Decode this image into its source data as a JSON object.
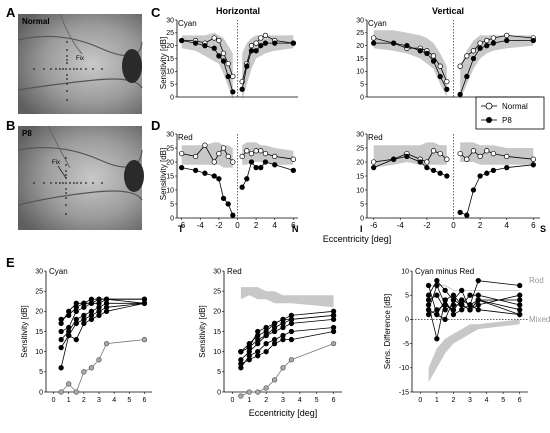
{
  "panel_letters": {
    "A": "A",
    "B": "B",
    "C": "C",
    "D": "D",
    "E": "E"
  },
  "fundus": {
    "A": {
      "title": "Normal",
      "fix_label": "Fix"
    },
    "B": {
      "title": "P8",
      "fix_label": "Fix"
    }
  },
  "column_titles": {
    "horizontal": "Horizontal",
    "vertical": "Vertical"
  },
  "legend": {
    "normal": "Normal",
    "p8": "P8"
  },
  "ylabel_cd": "Sensitivity [dB]",
  "xlabel_cd": "Eccentricity [deg]",
  "axis_end_labels": {
    "T": "T",
    "N": "N",
    "I": "I",
    "S": "S"
  },
  "xlabel_e": "Eccentricity [deg]",
  "curve_labels": {
    "rod": "Rod",
    "mixed": "Mixed"
  },
  "chart_data": [
    {
      "id": "C-horizontal",
      "type": "line",
      "title": "Cyan",
      "ylabel": "Sensitivity [dB]",
      "xlim": [
        -6.5,
        6.5
      ],
      "ylim": [
        0,
        30
      ],
      "x_neg": [
        -6,
        -4.5,
        -3.5,
        -2.5,
        -2,
        -1.5,
        -1,
        -0.5
      ],
      "x_pos": [
        0.5,
        1,
        1.5,
        2,
        2.5,
        3,
        4,
        6
      ],
      "normal_band": {
        "lo_neg": [
          19,
          18,
          16,
          14,
          13,
          9,
          4,
          -1
        ],
        "hi_neg": [
          24,
          24,
          24,
          25,
          24,
          23,
          20,
          17
        ],
        "lo_pos": [
          -1,
          5,
          11,
          15,
          16,
          17,
          18,
          19
        ],
        "hi_pos": [
          17,
          21,
          23,
          24,
          24,
          24,
          24,
          24
        ]
      },
      "series": [
        {
          "name": "Normal",
          "y_neg": [
            22,
            22,
            21,
            23,
            22,
            17,
            13,
            8
          ],
          "y_pos": [
            6,
            13,
            20,
            21,
            23,
            24,
            22,
            21
          ]
        },
        {
          "name": "P8",
          "y_neg": [
            22,
            21,
            20,
            19,
            16,
            14,
            8,
            2
          ],
          "y_pos": [
            3,
            12,
            18,
            18,
            20,
            21,
            21,
            21
          ]
        }
      ]
    },
    {
      "id": "C-vertical",
      "type": "line",
      "title": "Cyan",
      "ylabel": "",
      "xlim": [
        -6.5,
        6.5
      ],
      "ylim": [
        0,
        30
      ],
      "x_neg": [
        -6,
        -4.5,
        -3.5,
        -2.5,
        -2,
        -1.5,
        -1,
        -0.5
      ],
      "x_pos": [
        0.5,
        1,
        1.5,
        2,
        2.5,
        3,
        4,
        6
      ],
      "normal_band": {
        "lo_neg": [
          19,
          18,
          17,
          15,
          13,
          11,
          5,
          0
        ],
        "hi_neg": [
          26,
          26,
          25,
          24,
          23,
          21,
          17,
          12
        ],
        "lo_pos": [
          -1,
          5,
          11,
          15,
          17,
          18,
          19,
          20
        ],
        "hi_pos": [
          12,
          18,
          22,
          24,
          24,
          24,
          24,
          24
        ]
      },
      "series": [
        {
          "name": "Normal",
          "y_neg": [
            23,
            21,
            19,
            19,
            18,
            16,
            12,
            6
          ],
          "y_pos": [
            12,
            16,
            18,
            21,
            22,
            23,
            24,
            23
          ]
        },
        {
          "name": "P8",
          "y_neg": [
            21,
            21,
            20,
            18,
            17,
            14,
            8,
            3
          ],
          "y_pos": [
            1,
            8,
            15,
            19,
            20,
            21,
            22,
            22
          ]
        }
      ]
    },
    {
      "id": "D-horizontal",
      "type": "line",
      "title": "Red",
      "ylabel": "Sensitivity [dB]",
      "xlim": [
        -6.5,
        6.5
      ],
      "ylim": [
        0,
        30
      ],
      "x_neg": [
        -6,
        -4.5,
        -3.5,
        -2.5,
        -2,
        -1.5,
        -1,
        -0.5
      ],
      "x_pos": [
        0.5,
        1,
        1.5,
        2,
        2.5,
        3,
        4,
        6
      ],
      "normal_band": {
        "lo_neg": [
          19,
          19,
          19,
          19,
          19,
          18,
          18,
          18
        ],
        "hi_neg": [
          26,
          26,
          26,
          27,
          27,
          26,
          26,
          25
        ],
        "lo_pos": [
          19,
          19,
          20,
          20,
          20,
          20,
          19,
          19
        ],
        "hi_pos": [
          26,
          27,
          27,
          27,
          26,
          26,
          25,
          24
        ]
      },
      "series": [
        {
          "name": "Normal",
          "y_neg": [
            23,
            22,
            26,
            20,
            23,
            25,
            22,
            20
          ],
          "y_pos": [
            22,
            24,
            23,
            24,
            24,
            23,
            22,
            21
          ]
        },
        {
          "name": "P8",
          "y_neg": [
            18,
            17,
            16,
            15,
            14,
            7,
            5,
            1
          ],
          "y_pos": [
            11,
            14,
            20,
            18,
            18,
            20,
            19,
            17
          ]
        }
      ]
    },
    {
      "id": "D-vertical",
      "type": "line",
      "title": "Red",
      "ylabel": "",
      "xlim": [
        -6.5,
        6.5
      ],
      "ylim": [
        0,
        30
      ],
      "x_neg": [
        -6,
        -4.5,
        -3.5,
        -2.5,
        -2,
        -1.5,
        -1,
        -0.5
      ],
      "x_pos": [
        0.5,
        1,
        1.5,
        2,
        2.5,
        3,
        4,
        6
      ],
      "normal_band": {
        "lo_neg": [
          18,
          19,
          20,
          19,
          19,
          19,
          19,
          19
        ],
        "hi_neg": [
          26,
          26,
          26,
          26,
          27,
          27,
          26,
          26
        ],
        "lo_pos": [
          20,
          20,
          20,
          19,
          19,
          19,
          19,
          19
        ],
        "hi_pos": [
          27,
          27,
          27,
          26,
          26,
          26,
          25,
          25
        ]
      },
      "series": [
        {
          "name": "Normal",
          "y_neg": [
            20,
            21,
            23,
            21,
            20,
            24,
            23,
            21
          ],
          "y_pos": [
            23,
            21,
            24,
            22,
            24,
            23,
            22,
            21
          ]
        },
        {
          "name": "P8",
          "y_neg": [
            18,
            21,
            22,
            20,
            18,
            17,
            16,
            15
          ],
          "y_pos": [
            2,
            1,
            10,
            15,
            16,
            17,
            18,
            19
          ]
        }
      ]
    },
    {
      "id": "E-cyan",
      "type": "line",
      "title": "Cyan",
      "xlabel": "",
      "ylabel": "Sensitivity [dB]",
      "xlim": [
        -0.5,
        6.5
      ],
      "ylim": [
        0,
        30
      ],
      "x": [
        0.5,
        1,
        1.5,
        2,
        2.5,
        3,
        3.5,
        6
      ],
      "series": [
        {
          "values": [
            15,
            16,
            20,
            21,
            22,
            22,
            23,
            23
          ]
        },
        {
          "values": [
            17,
            20,
            22,
            22,
            23,
            23,
            23,
            23
          ]
        },
        {
          "values": [
            13,
            15,
            18,
            19,
            20,
            21,
            22,
            22
          ]
        },
        {
          "values": [
            11,
            14,
            17,
            18,
            19,
            20,
            21,
            22
          ]
        },
        {
          "values": [
            6,
            14,
            13,
            17,
            18,
            19,
            20,
            22
          ]
        },
        {
          "values": [
            18,
            19,
            21,
            22,
            22,
            23,
            23,
            22
          ]
        },
        {
          "values": [
            0,
            2,
            0,
            5,
            6,
            8,
            12,
            13
          ]
        }
      ]
    },
    {
      "id": "E-red",
      "type": "line",
      "title": "Red",
      "xlabel": "Eccentricity [deg]",
      "ylabel": "Sensitivity [dB]",
      "xlim": [
        -0.5,
        6.5
      ],
      "ylim": [
        0,
        30
      ],
      "x": [
        0.5,
        1,
        1.5,
        2,
        2.5,
        3,
        3.5,
        6
      ],
      "band": {
        "lo": [
          23,
          24,
          23,
          23,
          22,
          22,
          22,
          21
        ],
        "hi": [
          26,
          26,
          26,
          25,
          25,
          24,
          24,
          24
        ]
      },
      "series": [
        {
          "values": [
            10,
            12,
            14,
            15,
            17,
            18,
            19,
            20
          ]
        },
        {
          "values": [
            10,
            11,
            13,
            14,
            16,
            17,
            18,
            19
          ]
        },
        {
          "values": [
            8,
            10,
            12,
            14,
            15,
            16,
            17,
            18
          ]
        },
        {
          "values": [
            10,
            11,
            15,
            16,
            17,
            18,
            18,
            19
          ]
        },
        {
          "values": [
            6,
            9,
            10,
            12,
            13,
            14,
            15,
            16
          ]
        },
        {
          "values": [
            7,
            8,
            9,
            10,
            12,
            13,
            13,
            15
          ]
        },
        {
          "values": [
            -1,
            0,
            0,
            1,
            3,
            6,
            8,
            12
          ]
        }
      ]
    },
    {
      "id": "E-diff",
      "type": "line",
      "title": "Cyan minus Red",
      "xlabel": "",
      "ylabel": "Sens. Difference [dB]",
      "xlim": [
        -0.5,
        6.5
      ],
      "ylim": [
        -15,
        10
      ],
      "x": [
        0.5,
        1,
        1.5,
        2,
        2.5,
        3,
        3.5,
        6
      ],
      "rod_line": [
        7,
        7,
        7,
        6,
        6,
        6,
        6,
        6
      ],
      "mixed_band": {
        "lo": [
          -13,
          -10,
          -7,
          -5,
          -4,
          -3,
          -2,
          -1
        ],
        "hi": [
          -10,
          -6,
          -4,
          -3,
          -2,
          -1,
          -1,
          0
        ]
      },
      "series": [
        {
          "values": [
            5,
            8,
            6,
            4,
            3,
            5,
            5,
            3
          ]
        },
        {
          "values": [
            2,
            7,
            3,
            2,
            4,
            3,
            4,
            4
          ]
        },
        {
          "values": [
            4,
            5,
            2,
            3,
            3,
            2,
            3,
            5
          ]
        },
        {
          "values": [
            3,
            -4,
            4,
            1,
            2,
            3,
            8,
            7
          ]
        },
        {
          "values": [
            1,
            2,
            3,
            2,
            4,
            3,
            2,
            1
          ]
        },
        {
          "values": [
            7,
            1,
            4,
            5,
            3,
            2,
            4,
            2
          ]
        },
        {
          "values": [
            2,
            1,
            0,
            4,
            6,
            2,
            4,
            1
          ]
        }
      ]
    }
  ]
}
